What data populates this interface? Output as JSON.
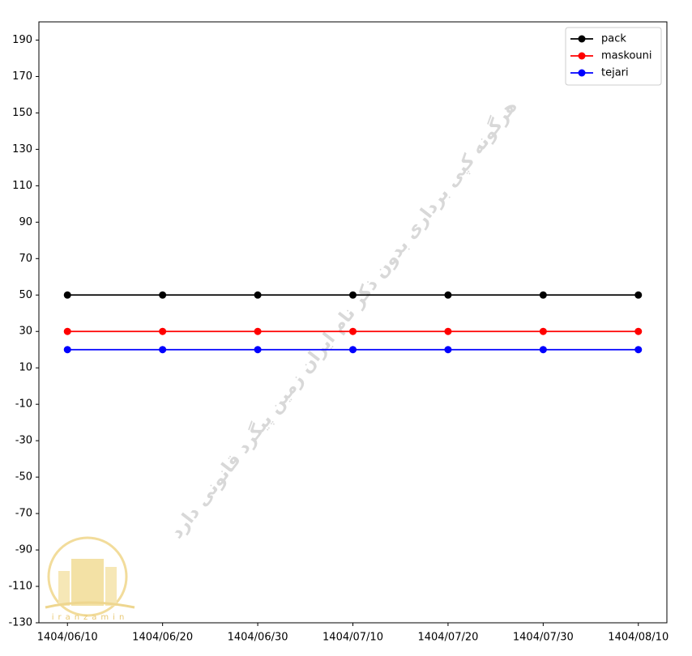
{
  "chart_data": {
    "type": "line",
    "categories": [
      "1404/06/10",
      "1404/06/20",
      "1404/06/30",
      "1404/07/10",
      "1404/07/20",
      "1404/07/30",
      "1404/08/10"
    ],
    "series": [
      {
        "name": "pack",
        "color": "#000000",
        "values": [
          50,
          50,
          50,
          50,
          50,
          50,
          50
        ]
      },
      {
        "name": "maskouni",
        "color": "#ff0000",
        "values": [
          30,
          30,
          30,
          30,
          30,
          30,
          30
        ]
      },
      {
        "name": "tejari",
        "color": "#0000ff",
        "values": [
          20,
          20,
          20,
          20,
          20,
          20,
          20
        ]
      }
    ],
    "ylim": [
      -130,
      200
    ],
    "yticks": [
      -130,
      -110,
      -90,
      -70,
      -50,
      -30,
      -10,
      10,
      30,
      50,
      70,
      90,
      110,
      130,
      150,
      170,
      190
    ],
    "legend": "upper right",
    "watermark": "هرگونه کپی برداری بدون ذکر نام ایران زمین پیگرد قانونی دارد",
    "logo_text": "iranzamin"
  }
}
